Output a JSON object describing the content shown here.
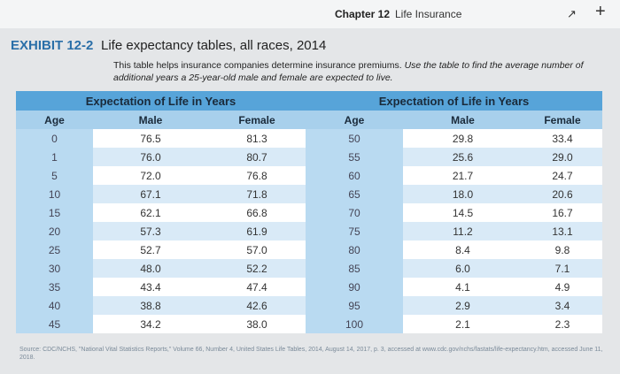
{
  "header": {
    "chapter": "Chapter 12",
    "section": "Life Insurance"
  },
  "exhibit": {
    "label": "EXHIBIT 12-2",
    "title": "Life expectancy tables, all races, 2014",
    "description": "This table helps insurance companies determine insurance premiums.",
    "instruction": "Use the table to find the average number of additional years a 25-year-old male and female are expected to live."
  },
  "tables": [
    {
      "group_header": "Expectation of Life in Years",
      "columns": [
        "Age",
        "Male",
        "Female"
      ],
      "rows": [
        [
          "0",
          "76.5",
          "81.3"
        ],
        [
          "1",
          "76.0",
          "80.7"
        ],
        [
          "5",
          "72.0",
          "76.8"
        ],
        [
          "10",
          "67.1",
          "71.8"
        ],
        [
          "15",
          "62.1",
          "66.8"
        ],
        [
          "20",
          "57.3",
          "61.9"
        ],
        [
          "25",
          "52.7",
          "57.0"
        ],
        [
          "30",
          "48.0",
          "52.2"
        ],
        [
          "35",
          "43.4",
          "47.4"
        ],
        [
          "40",
          "38.8",
          "42.6"
        ],
        [
          "45",
          "34.2",
          "38.0"
        ]
      ]
    },
    {
      "group_header": "Expectation of Life in Years",
      "columns": [
        "Age",
        "Male",
        "Female"
      ],
      "rows": [
        [
          "50",
          "29.8",
          "33.4"
        ],
        [
          "55",
          "25.6",
          "29.0"
        ],
        [
          "60",
          "21.7",
          "24.7"
        ],
        [
          "65",
          "18.0",
          "20.6"
        ],
        [
          "70",
          "14.5",
          "16.7"
        ],
        [
          "75",
          "11.2",
          "13.1"
        ],
        [
          "80",
          "8.4",
          "9.8"
        ],
        [
          "85",
          "6.0",
          "7.1"
        ],
        [
          "90",
          "4.1",
          "4.9"
        ],
        [
          "95",
          "2.9",
          "3.4"
        ],
        [
          "100",
          "2.1",
          "2.3"
        ]
      ]
    }
  ],
  "source": "Source: CDC/NCHS, \"National Vital Statistics Reports,\" Volume 66, Number 4, United States Life Tables, 2014, August 14, 2017, p. 3, accessed at www.cdc.gov/nchs/fastats/life-expectancy.htm, accessed June 11, 2018."
}
